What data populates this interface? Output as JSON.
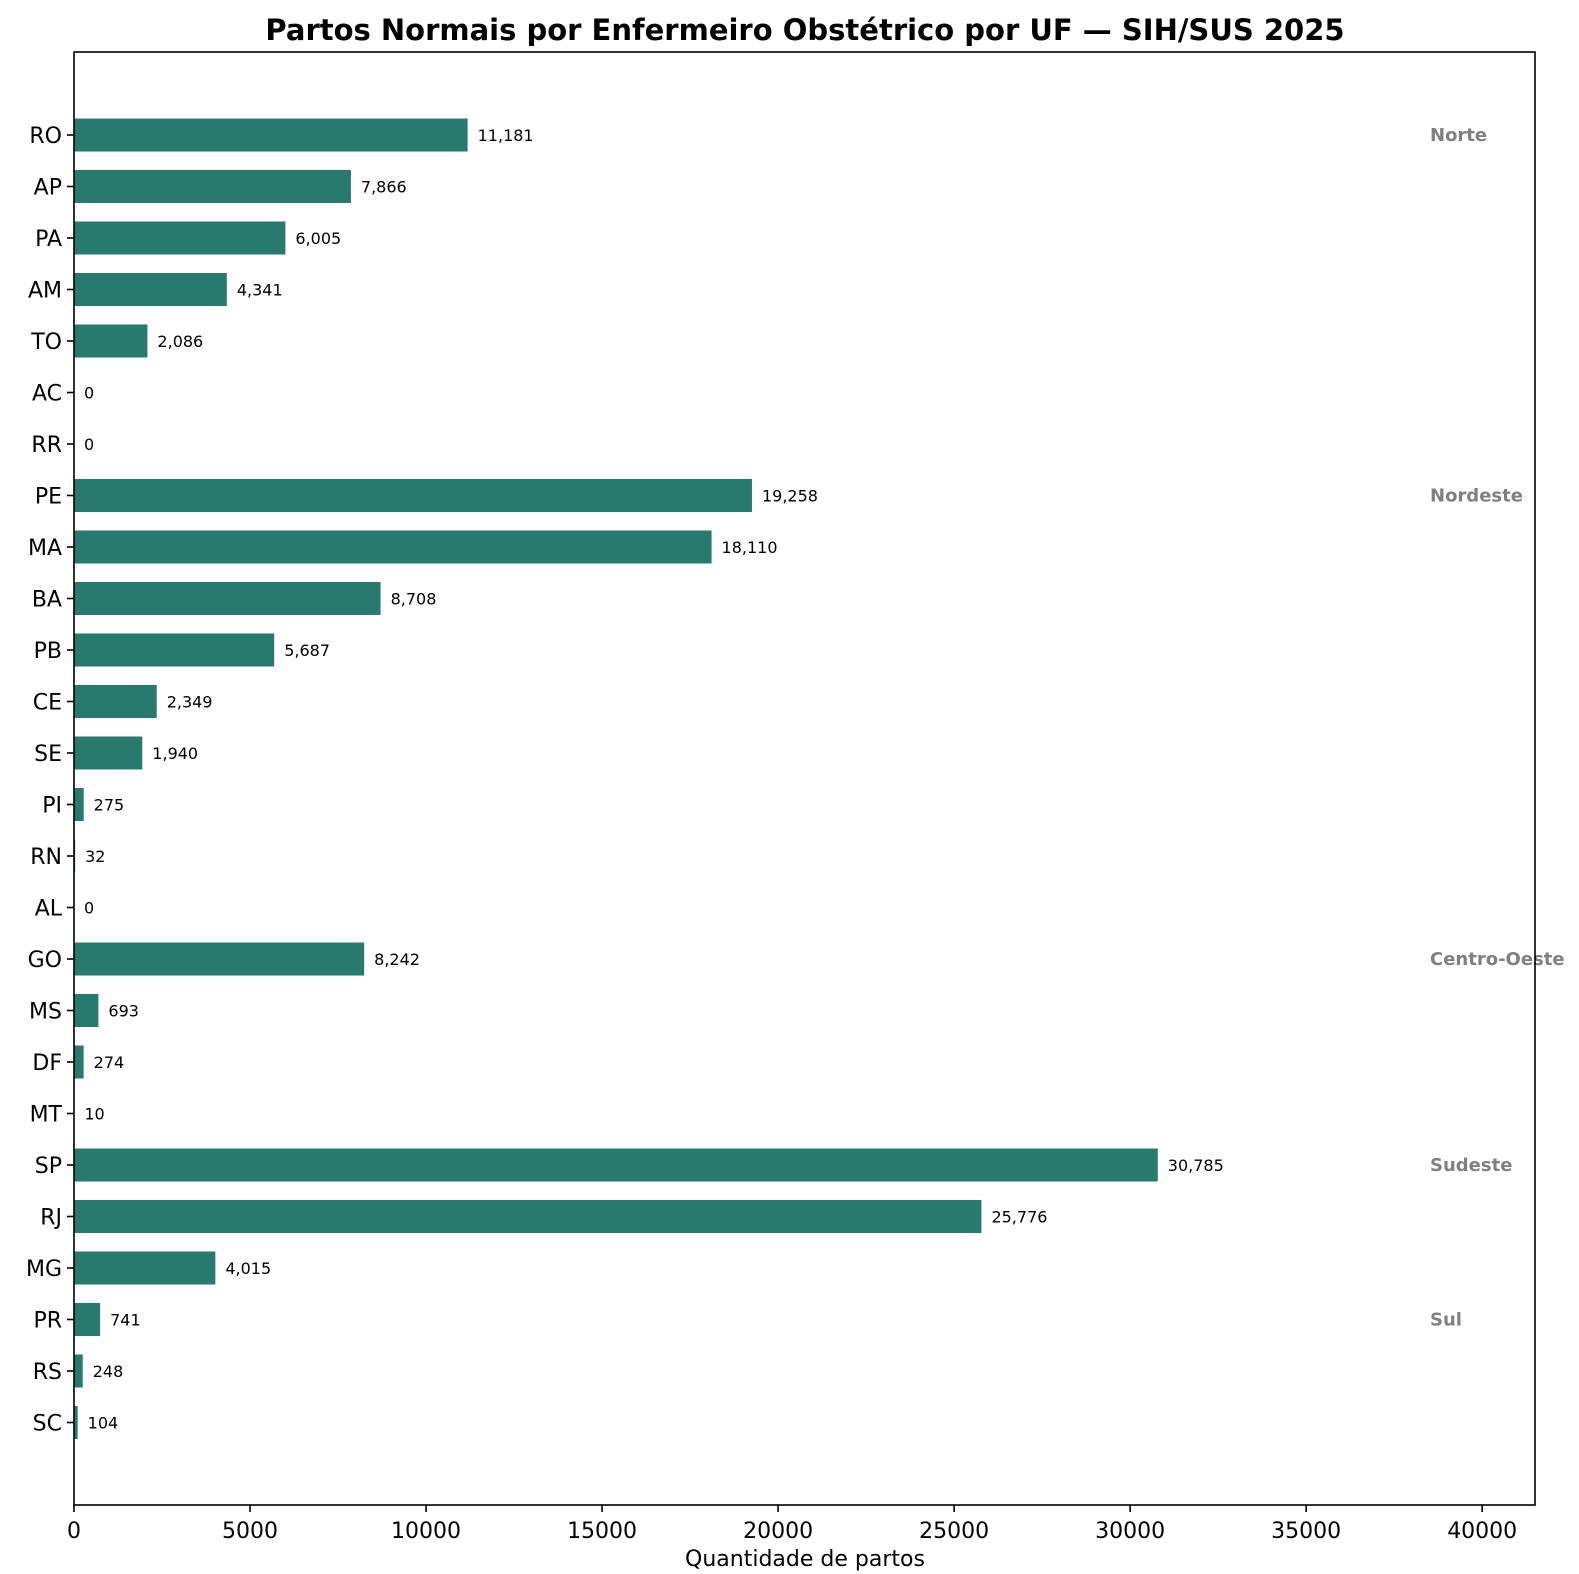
{
  "chart_data": {
    "type": "bar",
    "orientation": "horizontal",
    "title": "Partos Normais por Enfermeiro Obstétrico por UF — SIH/SUS 2025",
    "xlabel": "Quantidade de partos",
    "ylabel": "",
    "xlim": [
      0,
      41500
    ],
    "xticks": [
      0,
      5000,
      10000,
      15000,
      20000,
      25000,
      30000,
      35000,
      40000
    ],
    "grid": false,
    "bar_color": "#287A6E",
    "categories": [
      "RO",
      "AP",
      "PA",
      "AM",
      "TO",
      "AC",
      "RR",
      "PE",
      "MA",
      "BA",
      "PB",
      "CE",
      "SE",
      "PI",
      "RN",
      "AL",
      "GO",
      "MS",
      "DF",
      "MT",
      "SP",
      "RJ",
      "MG",
      "PR",
      "RS",
      "SC"
    ],
    "values": [
      11181,
      7866,
      6005,
      4341,
      2086,
      0,
      0,
      19258,
      18110,
      8708,
      5687,
      2349,
      1940,
      275,
      32,
      0,
      8242,
      693,
      274,
      10,
      30785,
      25776,
      4015,
      741,
      248,
      104
    ],
    "value_labels": [
      "11,181",
      "7,866",
      "6,005",
      "4,341",
      "2,086",
      "0",
      "0",
      "19,258",
      "18,110",
      "8,708",
      "5,687",
      "2,349",
      "1,940",
      "275",
      "32",
      "0",
      "8,242",
      "693",
      "274",
      "10",
      "30,785",
      "25,776",
      "4,015",
      "741",
      "248",
      "104"
    ],
    "region_labels": [
      {
        "text": "Norte",
        "category": "RO"
      },
      {
        "text": "Nordeste",
        "category": "PE"
      },
      {
        "text": "Centro-Oeste",
        "category": "GO"
      },
      {
        "text": "Sudeste",
        "category": "SP"
      },
      {
        "text": "Sul",
        "category": "PR"
      }
    ]
  }
}
